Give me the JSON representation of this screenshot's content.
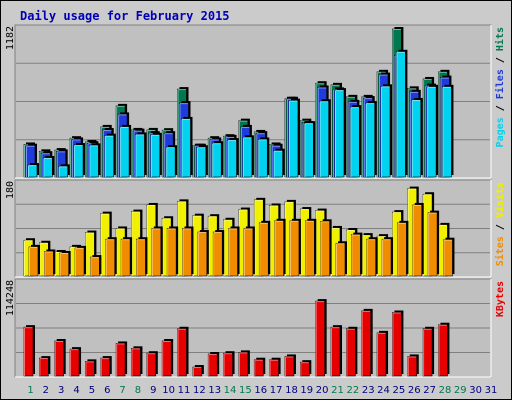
{
  "title": "Daily usage for February 2015",
  "colors": {
    "hits": "#007850",
    "files": "#1e3cdc",
    "pages": "#00d2f0",
    "visits": "#f0f000",
    "sites": "#f08c00",
    "kbytes": "#e60000",
    "weekend_day": "#007850",
    "weekday_day": "#000080"
  },
  "chart_data": [
    {
      "type": "bar",
      "label_segments": [
        {
          "text": "Pages",
          "key": "pages"
        },
        {
          "text": " / ",
          "key": null
        },
        {
          "text": "Files",
          "key": "files"
        },
        {
          "text": " / ",
          "key": null
        },
        {
          "text": "Hits",
          "key": "hits"
        }
      ],
      "ytick": "1182",
      "ymax": 1182,
      "grid": true,
      "series": [
        {
          "key": "hits",
          "values": [
            260,
            205,
            215,
            310,
            280,
            400,
            568,
            376,
            376,
            374,
            702,
            250,
            310,
            326,
            450,
            360,
            260,
            625,
            450,
            749,
            736,
            640,
            640,
            840,
            1182,
            708,
            783,
            840
          ]
        },
        {
          "key": "files",
          "values": [
            250,
            190,
            205,
            300,
            270,
            375,
            500,
            370,
            350,
            350,
            590,
            250,
            300,
            320,
            400,
            350,
            250,
            625,
            430,
            715,
            700,
            600,
            630,
            818,
            970,
            680,
            730,
            794
          ]
        },
        {
          "key": "pages",
          "values": [
            95,
            152,
            85,
            255,
            253,
            330,
            400,
            340,
            337,
            238,
            464,
            238,
            270,
            295,
            317,
            300,
            210,
            610,
            430,
            605,
            694,
            558,
            590,
            724,
            1000,
            615,
            720,
            720
          ]
        }
      ]
    },
    {
      "type": "bar",
      "label_segments": [
        {
          "text": "Sites",
          "key": "sites"
        },
        {
          "text": " / ",
          "key": null
        },
        {
          "text": "Visits",
          "key": "visits"
        }
      ],
      "ytick": "180",
      "ymax": 180,
      "grid": true,
      "series": [
        {
          "key": "visits",
          "values": [
            70,
            65,
            47,
            57,
            85,
            122,
            93,
            126,
            139,
            113,
            146,
            118,
            117,
            110,
            130,
            149,
            138,
            145,
            131,
            128,
            94,
            90,
            80,
            78,
            125,
            171,
            160,
            100
          ]
        },
        {
          "key": "sites",
          "values": [
            57,
            48,
            45,
            55,
            37,
            72,
            72,
            72,
            93,
            93,
            93,
            86,
            86,
            93,
            93,
            104,
            108,
            108,
            108,
            107,
            64,
            81,
            72,
            72,
            104,
            139,
            124,
            71
          ]
        }
      ]
    },
    {
      "type": "bar",
      "label_segments": [
        {
          "text": "KBytes",
          "key": "kbytes"
        }
      ],
      "ytick": "114248",
      "ymax": 114248,
      "grid": true,
      "series": [
        {
          "key": "kbytes",
          "values": [
            60000,
            22000,
            43000,
            33000,
            18000,
            22000,
            40000,
            34000,
            28000,
            43000,
            58000,
            11000,
            27000,
            28000,
            29000,
            20000,
            20000,
            24000,
            17000,
            92000,
            60000,
            58000,
            80000,
            53000,
            78000,
            24000,
            58000,
            63000
          ]
        }
      ]
    }
  ],
  "x_days": [
    "1",
    "2",
    "3",
    "4",
    "5",
    "6",
    "7",
    "8",
    "9",
    "10",
    "11",
    "12",
    "13",
    "14",
    "15",
    "16",
    "17",
    "18",
    "19",
    "20",
    "21",
    "22",
    "23",
    "24",
    "25",
    "26",
    "27",
    "28",
    "29",
    "30",
    "31"
  ],
  "weekend_days": [
    1,
    7,
    8,
    14,
    15,
    21,
    22,
    28,
    29
  ]
}
